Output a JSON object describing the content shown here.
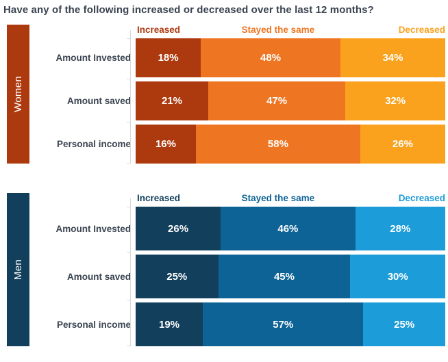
{
  "title": "Have any of the following increased or decreased over the last 12 months?",
  "colors": {
    "background": "#FFFFFF",
    "title_text": "#3A4450",
    "category_label_text": "#3A4450",
    "segment_value_text": "#FFFFFF",
    "axis_line": "#D9D9D9"
  },
  "chart_data": {
    "type": "bar",
    "variant": "horizontal-stacked-100",
    "value_suffix": "%",
    "legend_position": "top",
    "legend": [
      "Increased",
      "Stayed the same",
      "Decreased"
    ],
    "groups": [
      {
        "name": "Women",
        "band_color": "#AD3A0F",
        "segment_colors": [
          "#AD3A0F",
          "#EE7623",
          "#FAA21D"
        ],
        "categories": [
          "Amount Invested",
          "Amount saved",
          "Personal income"
        ],
        "series": [
          {
            "name": "Increased",
            "values": [
              18,
              21,
              16
            ]
          },
          {
            "name": "Stayed the same",
            "values": [
              48,
              47,
              58
            ]
          },
          {
            "name": "Decreased",
            "values": [
              34,
              32,
              26
            ]
          }
        ]
      },
      {
        "name": "Men",
        "band_color": "#123F5C",
        "segment_colors": [
          "#123F5C",
          "#0E6396",
          "#1C9CD8"
        ],
        "categories": [
          "Amount Invested",
          "Amount saved",
          "Personal income"
        ],
        "series": [
          {
            "name": "Increased",
            "values": [
              26,
              25,
              19
            ]
          },
          {
            "name": "Stayed the same",
            "values": [
              46,
              45,
              57
            ]
          },
          {
            "name": "Decreased",
            "values": [
              28,
              30,
              25
            ]
          }
        ]
      }
    ]
  }
}
